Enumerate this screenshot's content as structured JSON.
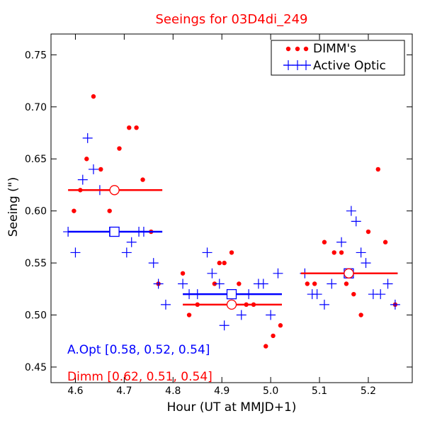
{
  "chart_data": {
    "type": "scatter",
    "title": "Seeings for 03D4di_249",
    "xlabel": "Hour (UT at MMJD+1)",
    "ylabel": "Seeing (\")",
    "xlim": [
      4.55,
      5.29
    ],
    "ylim": [
      0.435,
      0.77
    ],
    "x_ticks": [
      4.6,
      4.7,
      4.8,
      4.9,
      5.0,
      5.1,
      5.2
    ],
    "x_tick_labels": [
      "4.6",
      "4.7",
      "4.8",
      "4.9",
      "5.0",
      "5.1",
      "5.2"
    ],
    "y_ticks": [
      0.45,
      0.5,
      0.55,
      0.6,
      0.65,
      0.7,
      0.75
    ],
    "y_tick_labels": [
      "0.45",
      "0.50",
      "0.55",
      "0.60",
      "0.65",
      "0.70",
      "0.75"
    ],
    "grid": false,
    "legend_placement": "top-right",
    "colors": {
      "dimm": "#ff0000",
      "active_optic": "#0000ff",
      "title": "#ff0000"
    },
    "series": [
      {
        "name": "DIMM's",
        "marker": "dot",
        "color": "#ff0000",
        "x": [
          4.597,
          4.61,
          4.623,
          4.637,
          4.652,
          4.67,
          4.69,
          4.71,
          4.725,
          4.738,
          4.755,
          4.77,
          4.82,
          4.833,
          4.85,
          4.885,
          4.895,
          4.905,
          4.92,
          4.935,
          4.95,
          4.965,
          4.99,
          5.005,
          5.02,
          5.075,
          5.09,
          5.11,
          5.13,
          5.145,
          5.155,
          5.17,
          5.185,
          5.2,
          5.22,
          5.235,
          5.255
        ],
        "y": [
          0.6,
          0.62,
          0.65,
          0.71,
          0.64,
          0.6,
          0.66,
          0.68,
          0.68,
          0.63,
          0.58,
          0.53,
          0.54,
          0.5,
          0.51,
          0.53,
          0.55,
          0.55,
          0.56,
          0.53,
          0.51,
          0.51,
          0.47,
          0.48,
          0.49,
          0.53,
          0.53,
          0.57,
          0.56,
          0.56,
          0.53,
          0.52,
          0.5,
          0.58,
          0.64,
          0.57,
          0.51
        ]
      },
      {
        "name": "Active Optic",
        "marker": "plus",
        "color": "#0000ff",
        "x": [
          4.585,
          4.6,
          4.615,
          4.625,
          4.637,
          4.65,
          4.67,
          4.705,
          4.715,
          4.73,
          4.74,
          4.76,
          4.77,
          4.785,
          4.82,
          4.833,
          4.85,
          4.87,
          4.88,
          4.895,
          4.905,
          4.915,
          4.94,
          4.955,
          4.975,
          4.985,
          5.0,
          5.015,
          5.07,
          5.085,
          5.095,
          5.11,
          5.125,
          5.145,
          5.165,
          5.175,
          5.185,
          5.195,
          5.21,
          5.225,
          5.24,
          5.255
        ],
        "y": [
          0.58,
          0.56,
          0.63,
          0.67,
          0.64,
          0.62,
          0.58,
          0.56,
          0.57,
          0.58,
          0.58,
          0.55,
          0.53,
          0.51,
          0.53,
          0.52,
          0.52,
          0.56,
          0.54,
          0.53,
          0.49,
          0.52,
          0.5,
          0.52,
          0.53,
          0.53,
          0.5,
          0.54,
          0.54,
          0.52,
          0.52,
          0.51,
          0.53,
          0.57,
          0.6,
          0.59,
          0.56,
          0.55,
          0.52,
          0.52,
          0.53,
          0.51
        ]
      }
    ],
    "medians": [
      {
        "series": "Active Optic",
        "color": "#0000ff",
        "marker": "square",
        "x_start": 4.585,
        "x_end": 4.778,
        "y": 0.58,
        "marker_x": 4.68
      },
      {
        "series": "Active Optic",
        "color": "#0000ff",
        "marker": "square",
        "x_start": 4.82,
        "x_end": 5.023,
        "y": 0.52,
        "marker_x": 4.92
      },
      {
        "series": "Active Optic",
        "color": "#0000ff",
        "marker": "square",
        "x_start": 5.062,
        "x_end": 5.26,
        "y": 0.54,
        "marker_x": 5.16
      },
      {
        "series": "DIMM's",
        "color": "#ff0000",
        "marker": "circle",
        "x_start": 4.585,
        "x_end": 4.778,
        "y": 0.62,
        "marker_x": 4.68
      },
      {
        "series": "DIMM's",
        "color": "#ff0000",
        "marker": "circle",
        "x_start": 4.82,
        "x_end": 5.023,
        "y": 0.51,
        "marker_x": 4.92
      },
      {
        "series": "DIMM's",
        "color": "#ff0000",
        "marker": "circle",
        "x_start": 5.062,
        "x_end": 5.26,
        "y": 0.54,
        "marker_x": 5.16
      }
    ],
    "annotations": {
      "aopt": "A.Opt [0.58, 0.52, 0.54]",
      "dimm": "Dimm [0.62, 0.51, 0.54]"
    },
    "legend": {
      "dimm_label": "DIMM's",
      "ao_label": "Active Optic"
    }
  }
}
